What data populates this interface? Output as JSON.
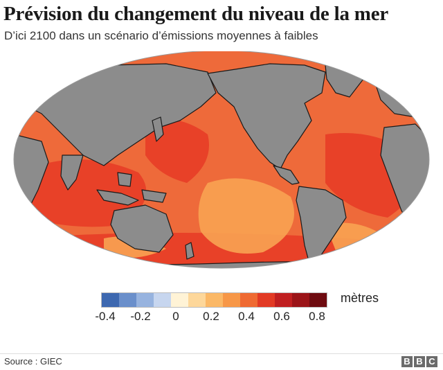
{
  "title": "Prévision du changement du niveau de la mer",
  "subtitle": "D’ici 2100 dans un scénario d’émissions moyennes à faibles",
  "legend": {
    "unit": "mètres",
    "ticks": [
      "-0.4",
      "-0.2",
      "0",
      "0.2",
      "0.4",
      "0.6",
      "0.8"
    ],
    "colors": [
      "#3d68b0",
      "#6a8fcb",
      "#97b3df",
      "#c7d6ef",
      "#fff3d6",
      "#fdd79a",
      "#fbb866",
      "#f79747",
      "#ef6a32",
      "#e23a24",
      "#c01f20",
      "#9b1418",
      "#6e0b10"
    ]
  },
  "colors": {
    "land": "#8c8c8c",
    "ocean_base": "#ee6a3a",
    "ocean_high": "#e63a26",
    "ocean_low": "#f8a352",
    "coastline": "#1a1a1a"
  },
  "footer": {
    "source": "Source : GIEC",
    "logo": [
      "B",
      "B",
      "C"
    ]
  }
}
